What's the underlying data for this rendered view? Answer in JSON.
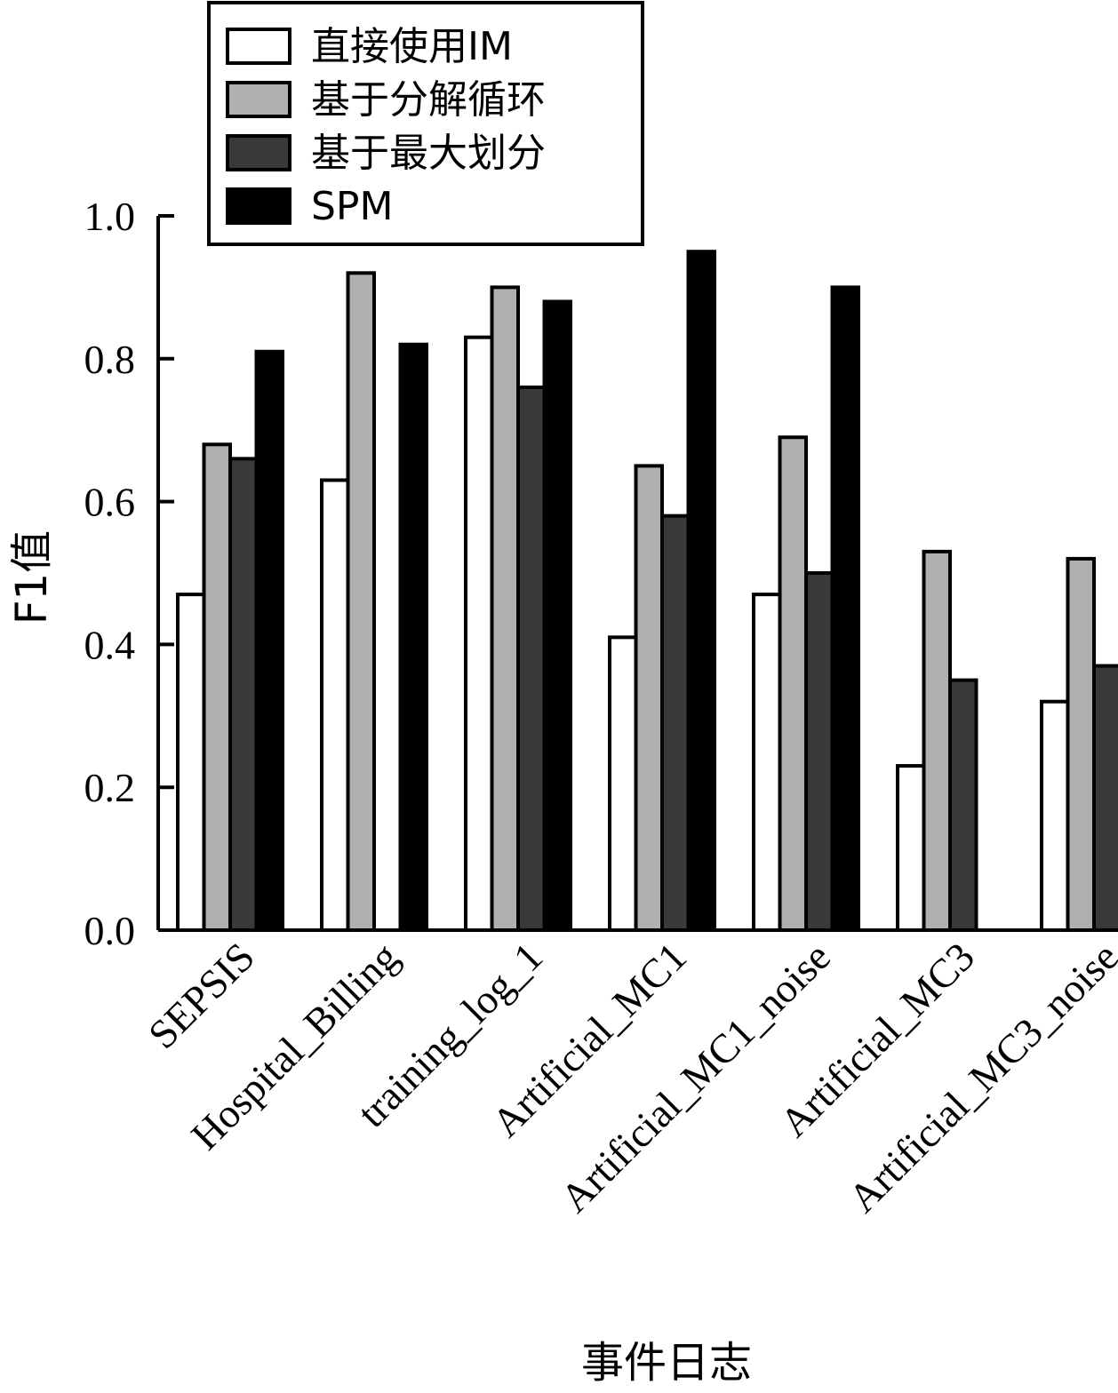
{
  "chart_data": {
    "type": "bar",
    "title": "",
    "xlabel": "事件日志",
    "ylabel": "F1值",
    "ylim": [
      0,
      1.0
    ],
    "yticks": [
      "0.0",
      "0.2",
      "0.4",
      "0.6",
      "0.8",
      "1.0"
    ],
    "categories": [
      "SEPSIS",
      "Hospital_Billing",
      "training_log_1",
      "Artificial_MC1",
      "Artificial_MC1_noise",
      "Artificial_MC3",
      "Artificial_MC3_noise"
    ],
    "series": [
      {
        "name": "直接使用IM",
        "color": "#ffffff",
        "values": [
          0.47,
          0.63,
          0.83,
          0.41,
          0.47,
          0.23,
          0.32
        ]
      },
      {
        "name": "基于分解循环",
        "color": "#b0b0b0",
        "values": [
          0.68,
          0.92,
          0.9,
          0.65,
          0.69,
          0.53,
          0.52
        ]
      },
      {
        "name": "基于最大划分",
        "color": "#3a3a3a",
        "values": [
          0.66,
          0,
          0.76,
          0.58,
          0.5,
          0.35,
          0.37
        ]
      },
      {
        "name": "SPM",
        "color": "#000000",
        "values": [
          0.81,
          0.82,
          0.88,
          0.95,
          0.9,
          0,
          0
        ]
      }
    ],
    "legend_position": "top-left",
    "grid": false
  }
}
